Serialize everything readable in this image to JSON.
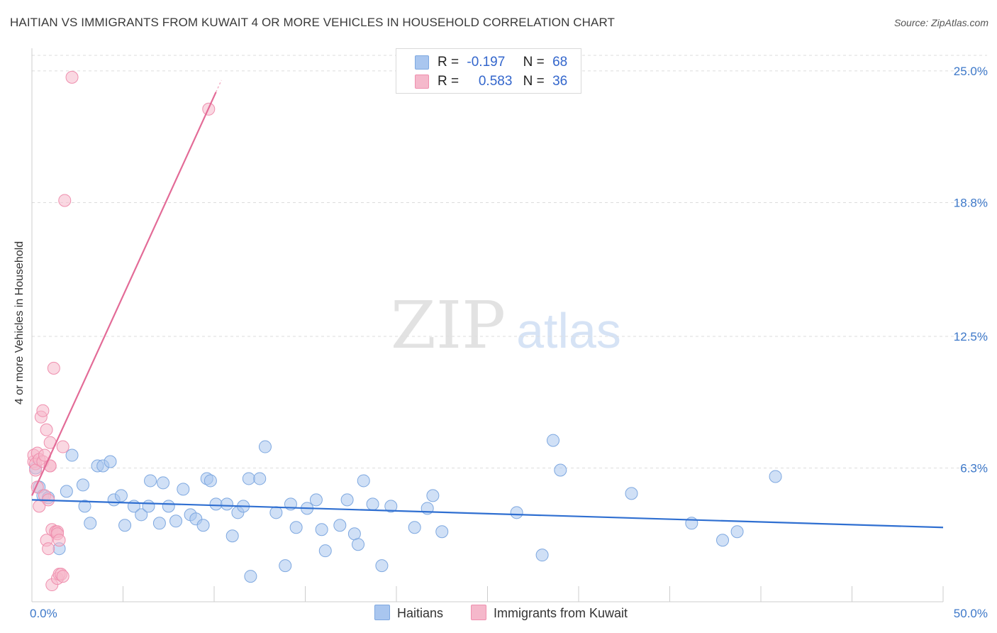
{
  "title": "HAITIAN VS IMMIGRANTS FROM KUWAIT 4 OR MORE VEHICLES IN HOUSEHOLD CORRELATION CHART",
  "source": "Source: ZipAtlas.com",
  "watermark": {
    "zip": "ZIP",
    "atlas": "atlas"
  },
  "colors": {
    "blue_fill": "#a9c6ef",
    "blue_stroke": "#7ea8e0",
    "blue_line": "#2f6fd1",
    "pink_fill": "#f5b8cb",
    "pink_stroke": "#ef8fae",
    "pink_line": "#e36b97",
    "grid": "#dddddd",
    "tick_label": "#3d78c9"
  },
  "legend_top": {
    "rows": [
      {
        "r_label": "R =",
        "r_value": "-0.197",
        "n_label": "N =",
        "n_value": "68",
        "color": "#a9c6ef"
      },
      {
        "r_label": "R =",
        "r_value": "0.583",
        "n_label": "N =",
        "n_value": "36",
        "color": "#f5b8cb"
      }
    ]
  },
  "legend_bottom": [
    {
      "label": "Haitians",
      "color": "#a9c6ef"
    },
    {
      "label": "Immigrants from Kuwait",
      "color": "#f5b8cb"
    }
  ],
  "chart_data": {
    "type": "scatter",
    "title": "HAITIAN VS IMMIGRANTS FROM KUWAIT 4 OR MORE VEHICLES IN HOUSEHOLD CORRELATION CHART",
    "xlabel": "",
    "ylabel": "4 or more Vehicles in Household",
    "xlim": [
      0,
      50
    ],
    "ylim": [
      0,
      26
    ],
    "x_tick_labels": [
      "0.0%",
      "50.0%"
    ],
    "y_ticks": [
      {
        "value": 6.3,
        "label": "6.3%"
      },
      {
        "value": 12.5,
        "label": "12.5%"
      },
      {
        "value": 18.8,
        "label": "18.8%"
      },
      {
        "value": 25.0,
        "label": "25.0%"
      }
    ],
    "grid": "horizontal dashed",
    "legend_position": "top-center and bottom",
    "series": [
      {
        "name": "Haitians",
        "r": -0.197,
        "n": 68,
        "trend": {
          "x": [
            0,
            50
          ],
          "y": [
            4.8,
            3.5
          ]
        },
        "points": [
          [
            0.2,
            6.3
          ],
          [
            0.4,
            5.4
          ],
          [
            0.6,
            5.0
          ],
          [
            0.9,
            4.9
          ],
          [
            1.5,
            2.5
          ],
          [
            1.9,
            5.2
          ],
          [
            2.2,
            6.9
          ],
          [
            2.8,
            5.5
          ],
          [
            2.9,
            4.5
          ],
          [
            3.2,
            3.7
          ],
          [
            3.6,
            6.4
          ],
          [
            3.9,
            6.4
          ],
          [
            4.3,
            6.6
          ],
          [
            4.5,
            4.8
          ],
          [
            4.9,
            5.0
          ],
          [
            5.1,
            3.6
          ],
          [
            5.6,
            4.5
          ],
          [
            6.0,
            4.1
          ],
          [
            6.4,
            4.5
          ],
          [
            6.5,
            5.7
          ],
          [
            7.0,
            3.7
          ],
          [
            7.2,
            5.6
          ],
          [
            7.5,
            4.5
          ],
          [
            7.9,
            3.8
          ],
          [
            8.3,
            5.3
          ],
          [
            8.7,
            4.1
          ],
          [
            9.0,
            3.9
          ],
          [
            9.4,
            3.6
          ],
          [
            9.6,
            5.8
          ],
          [
            9.8,
            5.7
          ],
          [
            10.1,
            4.6
          ],
          [
            10.7,
            4.6
          ],
          [
            11.0,
            3.1
          ],
          [
            11.3,
            4.2
          ],
          [
            11.6,
            4.5
          ],
          [
            11.9,
            5.8
          ],
          [
            12.0,
            1.2
          ],
          [
            12.5,
            5.8
          ],
          [
            12.8,
            7.3
          ],
          [
            13.4,
            4.2
          ],
          [
            13.9,
            1.7
          ],
          [
            14.2,
            4.6
          ],
          [
            14.5,
            3.5
          ],
          [
            15.1,
            4.4
          ],
          [
            15.6,
            4.8
          ],
          [
            15.9,
            3.4
          ],
          [
            16.1,
            2.4
          ],
          [
            16.9,
            3.6
          ],
          [
            17.3,
            4.8
          ],
          [
            17.7,
            3.2
          ],
          [
            17.9,
            2.7
          ],
          [
            18.2,
            5.7
          ],
          [
            18.7,
            4.6
          ],
          [
            19.2,
            1.7
          ],
          [
            19.7,
            4.5
          ],
          [
            21.0,
            3.5
          ],
          [
            21.7,
            4.4
          ],
          [
            22.0,
            5.0
          ],
          [
            22.5,
            3.3
          ],
          [
            26.6,
            4.2
          ],
          [
            28.0,
            2.2
          ],
          [
            28.6,
            7.6
          ],
          [
            29.0,
            6.2
          ],
          [
            32.9,
            5.1
          ],
          [
            36.2,
            3.7
          ],
          [
            37.9,
            2.9
          ],
          [
            38.7,
            3.3
          ],
          [
            40.8,
            5.9
          ]
        ]
      },
      {
        "name": "Immigrants from Kuwait",
        "r": 0.583,
        "n": 36,
        "trend": {
          "x": [
            0,
            10.1
          ],
          "y": [
            5.0,
            24.0
          ]
        },
        "points": [
          [
            0.1,
            6.6
          ],
          [
            0.1,
            6.9
          ],
          [
            0.2,
            6.5
          ],
          [
            0.2,
            6.2
          ],
          [
            0.3,
            7.0
          ],
          [
            0.3,
            5.4
          ],
          [
            0.4,
            6.7
          ],
          [
            0.4,
            4.5
          ],
          [
            0.5,
            8.7
          ],
          [
            0.6,
            6.6
          ],
          [
            0.6,
            9.0
          ],
          [
            0.7,
            6.9
          ],
          [
            0.7,
            5.0
          ],
          [
            0.8,
            8.1
          ],
          [
            0.8,
            2.9
          ],
          [
            0.9,
            4.8
          ],
          [
            0.9,
            2.5
          ],
          [
            1.0,
            7.5
          ],
          [
            1.0,
            6.4
          ],
          [
            1.0,
            6.4
          ],
          [
            1.1,
            3.4
          ],
          [
            1.1,
            0.8
          ],
          [
            1.2,
            11.0
          ],
          [
            1.3,
            3.3
          ],
          [
            1.3,
            3.3
          ],
          [
            1.4,
            3.3
          ],
          [
            1.4,
            3.2
          ],
          [
            1.4,
            1.1
          ],
          [
            1.5,
            2.9
          ],
          [
            1.5,
            1.3
          ],
          [
            1.6,
            1.3
          ],
          [
            1.7,
            7.3
          ],
          [
            1.7,
            1.2
          ],
          [
            1.8,
            18.9
          ],
          [
            2.2,
            24.7
          ],
          [
            9.7,
            23.2
          ]
        ]
      }
    ]
  }
}
